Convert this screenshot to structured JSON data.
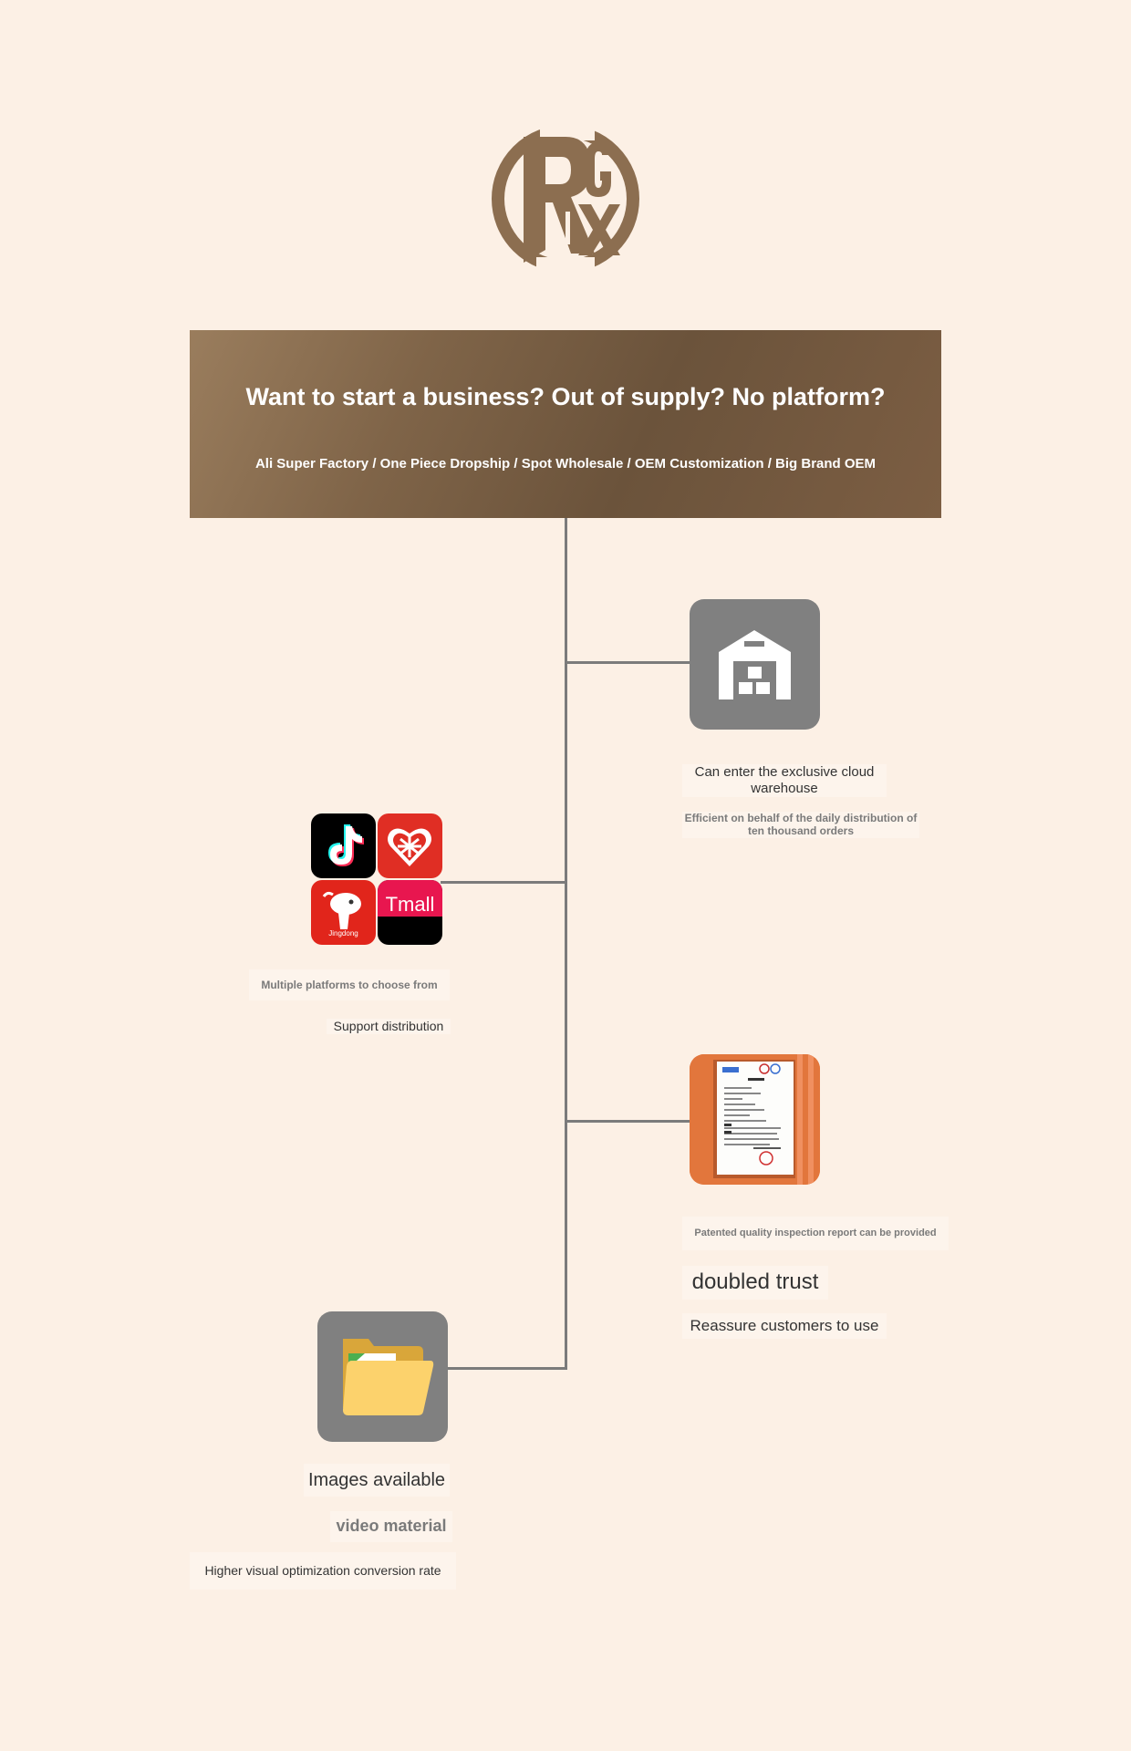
{
  "banner": {
    "title": "Want to start a business? Out of supply? No platform?",
    "subtitle": "Ali Super Factory / One Piece Dropship / Spot Wholesale / OEM Customization / Big Brand OEM"
  },
  "features": {
    "warehouse": {
      "icon": "warehouse-icon",
      "title": "Can enter the exclusive cloud warehouse",
      "desc": "Efficient on behalf of the daily distribution of ten thousand orders"
    },
    "platforms": {
      "icons": [
        "tiktok-icon",
        "pinduoduo-icon",
        "jingdong-icon",
        "tmall-icon"
      ],
      "tmall_label": "Tmall",
      "jd_label": "Jingdong",
      "title": "Multiple platforms to choose from",
      "desc": "Support distribution"
    },
    "certificate": {
      "icon": "certificate-icon",
      "title": "Patented quality inspection report can be provided",
      "headline": "doubled trust",
      "desc": "Reassure customers to use"
    },
    "media": {
      "icon": "folder-icon",
      "title": "Images available",
      "subtitle": "video material",
      "desc": "Higher visual optimization conversion rate"
    }
  },
  "colors": {
    "background": "#fcf0e5",
    "brand_brown": "#8c6e50",
    "connector": "#7b7b7b",
    "tile_grey": "#808080"
  }
}
